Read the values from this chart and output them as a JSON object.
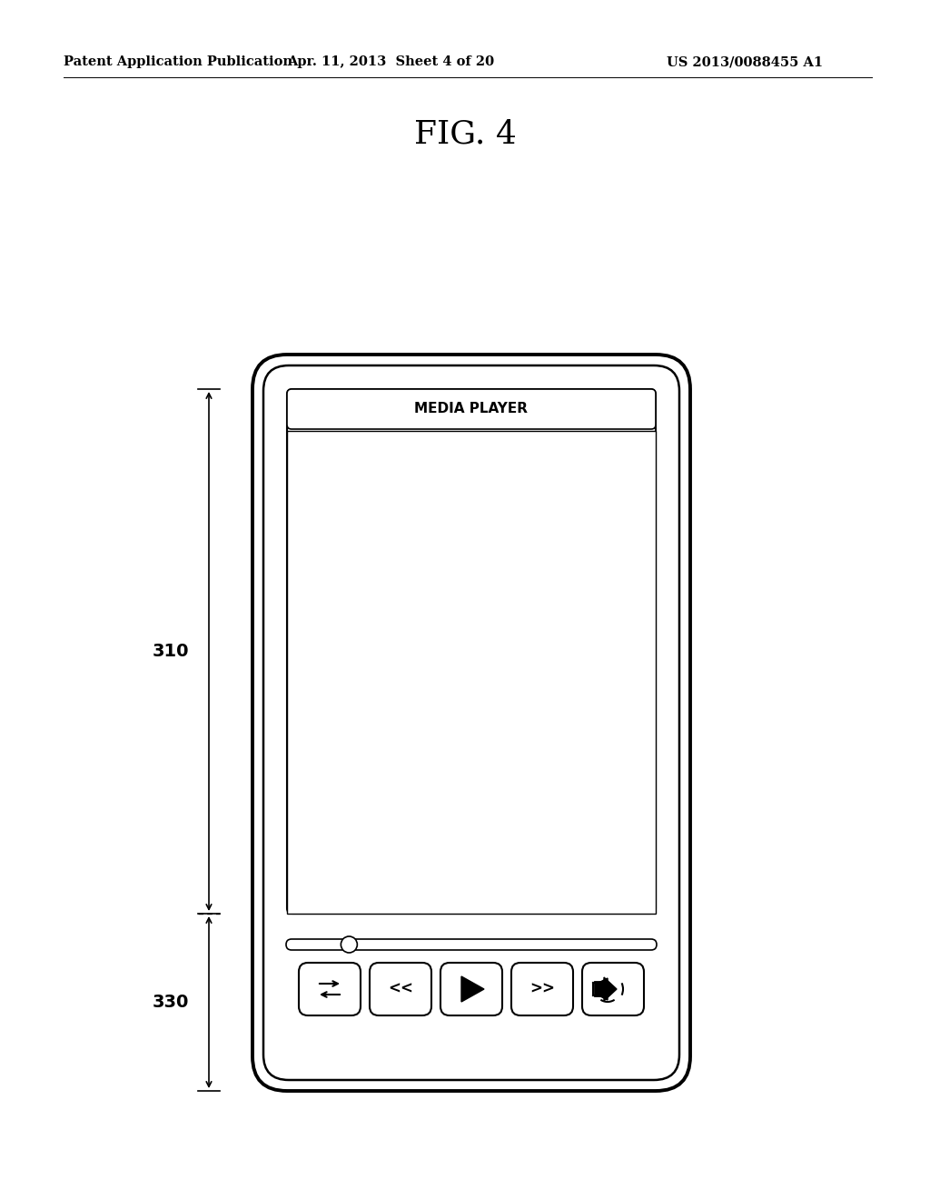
{
  "bg_color": "#ffffff",
  "fig_title": "FIG. 4",
  "header_left": "Patent Application Publication",
  "header_mid": "Apr. 11, 2013  Sheet 4 of 20",
  "header_right": "US 2013/0088455 A1",
  "label_310": "310",
  "label_330": "330",
  "media_player_label": "MEDIA PLAYER",
  "btn_rewind": "<<",
  "btn_forward": ">>"
}
